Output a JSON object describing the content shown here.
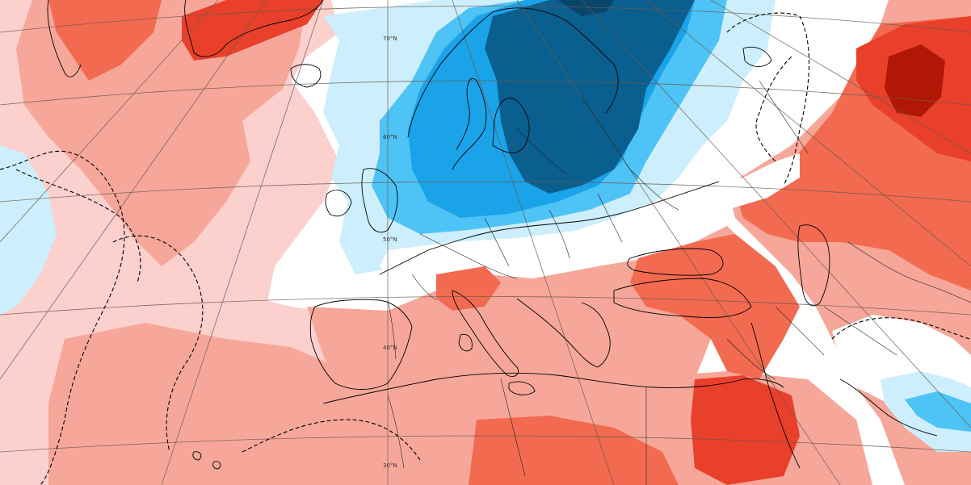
{
  "map": {
    "latitude_labels": [
      "70°N",
      "60°N",
      "50°N",
      "40°N",
      "30°N"
    ],
    "colors": {
      "dark_blue": "#0b5f8e",
      "mid_blue": "#1aa3e8",
      "light_blue": "#4ec3f5",
      "pale_blue": "#cdeefc",
      "white": "#ffffff",
      "pale_red": "#fcd0cc",
      "light_red": "#f6a799",
      "mid_red": "#f26a4f",
      "strong_red": "#e8402a",
      "dark_red": "#b01805"
    },
    "contour_style": "dashed-black",
    "coastline_color": "#000000",
    "graticule_color": "#6b5b4f"
  }
}
